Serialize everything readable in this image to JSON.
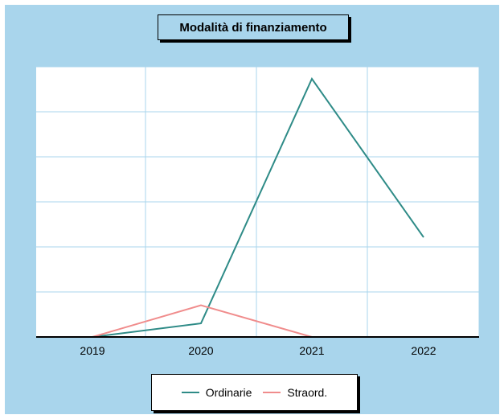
{
  "chart_data": {
    "type": "line",
    "title": "Modalità di finanziamento",
    "xlabel": "",
    "ylabel": "",
    "categories": [
      "2019",
      "2020",
      "2021",
      "2022"
    ],
    "ylim": [
      0,
      57
    ],
    "grid": true,
    "legend_position": "bottom-center",
    "series": [
      {
        "name": "Ordinarie",
        "color": "#2e8b87",
        "values": [
          0,
          3,
          57,
          22
        ]
      },
      {
        "name": "Straord.",
        "color": "#f08c8c",
        "values": [
          0,
          7,
          0,
          null
        ]
      }
    ]
  }
}
